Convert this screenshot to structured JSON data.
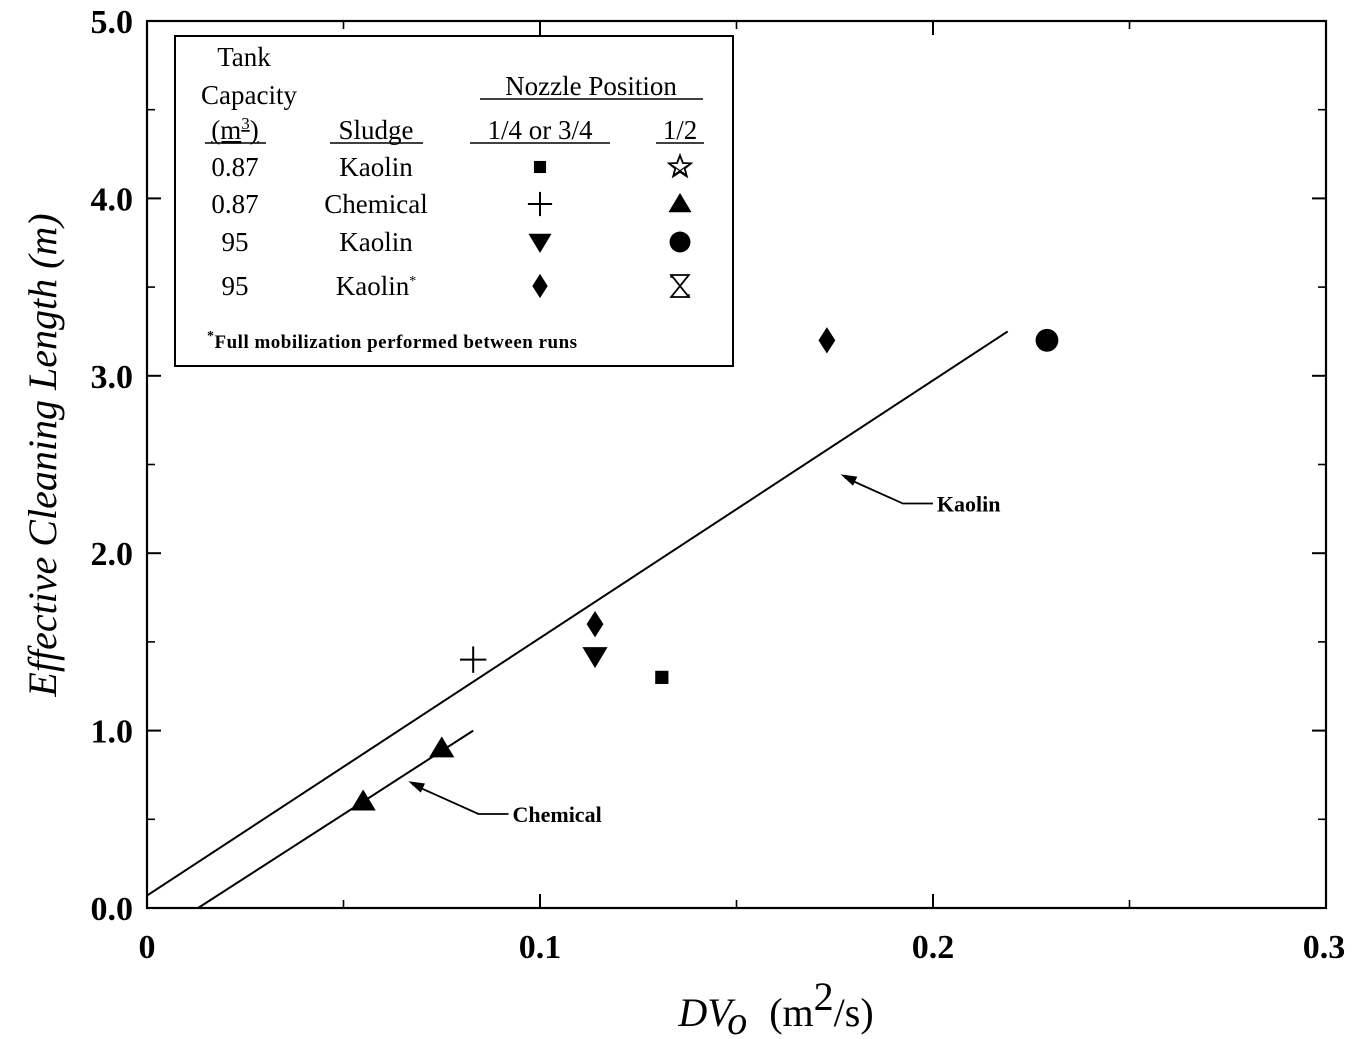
{
  "chart_data": {
    "type": "scatter",
    "ylabel": "Effective Cleaning Length (m)",
    "xlabel_main": "DV",
    "xlabel_sub": "o",
    "xlabel_unit_pre": "(m",
    "xlabel_unit_sup": "2",
    "xlabel_unit_post": "/s)",
    "xlim": [
      0,
      0.3
    ],
    "ylim": [
      0,
      5.0
    ],
    "x_ticks": [
      {
        "value": 0,
        "label": "0"
      },
      {
        "value": 0.1,
        "label": "0.1"
      },
      {
        "value": 0.2,
        "label": "0.2"
      },
      {
        "value": 0.3,
        "label": "0.3"
      }
    ],
    "x_minor_ticks": [
      0.05,
      0.15,
      0.25
    ],
    "y_ticks": [
      {
        "value": 0,
        "label": "0.0"
      },
      {
        "value": 1,
        "label": "1.0"
      },
      {
        "value": 2,
        "label": "2.0"
      },
      {
        "value": 3,
        "label": "3.0"
      },
      {
        "value": 4,
        "label": "4.0"
      },
      {
        "value": 5,
        "label": "5.0"
      }
    ],
    "y_minor_ticks": [
      0.5,
      1.5,
      2.5,
      3.5,
      4.5
    ],
    "grid": false,
    "legend_position": "top-left",
    "series": [
      {
        "marker": "square",
        "points": [
          [
            0.131,
            1.3
          ]
        ]
      },
      {
        "marker": "plus",
        "points": [
          [
            0.083,
            1.4
          ]
        ]
      },
      {
        "marker": "triangle-up",
        "points": [
          [
            0.055,
            0.6
          ],
          [
            0.075,
            0.9
          ]
        ]
      },
      {
        "marker": "triangle-down",
        "points": [
          [
            0.114,
            1.42
          ]
        ]
      },
      {
        "marker": "circle",
        "points": [
          [
            0.229,
            3.2
          ]
        ]
      },
      {
        "marker": "diamond",
        "points": [
          [
            0.114,
            1.6
          ],
          [
            0.173,
            3.2
          ]
        ]
      }
    ],
    "lines": [
      {
        "name": "Kaolin",
        "x": [
          0,
          0.219
        ],
        "y": [
          0.07,
          3.25
        ],
        "label_anchor": [
          0.176,
          2.45
        ],
        "label_pos": [
          0.201,
          2.28
        ]
      },
      {
        "name": "Chemical",
        "x": [
          0.013,
          0.083
        ],
        "y": [
          0.0,
          1.0
        ],
        "label_anchor": [
          0.066,
          0.72
        ],
        "label_pos": [
          0.093,
          0.53
        ]
      }
    ],
    "legend": {
      "header_tank": [
        "Tank",
        "Capacity"
      ],
      "header_unit_pre": "(m",
      "header_unit_sup": "3",
      "header_unit_post": ")",
      "header_sludge": "Sludge",
      "header_nozzle": "Nozzle Position",
      "header_pos1": "1/4 or 3/4",
      "header_pos2": "1/2",
      "rows": [
        {
          "capacity": "0.87",
          "sludge": "Kaolin",
          "marker1": "square",
          "marker2": "star-open"
        },
        {
          "capacity": "0.87",
          "sludge": "Chemical",
          "marker1": "plus",
          "marker2": "triangle-up"
        },
        {
          "capacity": "95",
          "sludge": "Kaolin",
          "marker1": "triangle-down",
          "marker2": "circle"
        },
        {
          "capacity": "95",
          "sludge": "Kaolin",
          "sludge_mark": "*",
          "marker1": "diamond",
          "marker2": "hourglass-open"
        }
      ],
      "footnote_mark": "*",
      "footnote": "Full mobilization performed between runs"
    }
  }
}
